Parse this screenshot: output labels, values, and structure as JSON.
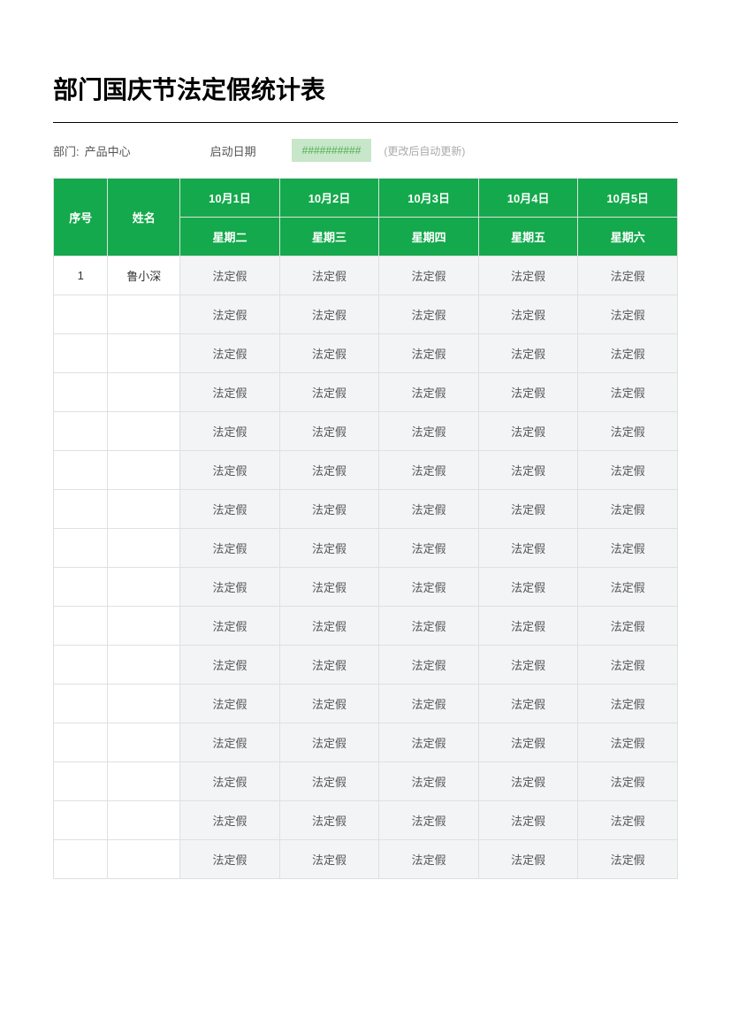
{
  "title": "部门国庆节法定假统计表",
  "info": {
    "dept_label": "部门:",
    "dept_value": "产品中心",
    "start_date_label": "启动日期",
    "start_date_value": "##########",
    "note": "(更改后自动更新)"
  },
  "table": {
    "headers": {
      "seq": "序号",
      "name": "姓名",
      "dates": [
        "10月1日",
        "10月2日",
        "10月3日",
        "10月4日",
        "10月5日"
      ],
      "weekdays": [
        "星期二",
        "星期三",
        "星期四",
        "星期五",
        "星期六"
      ]
    },
    "rows": [
      {
        "seq": "1",
        "name": "鲁小深",
        "cells": [
          "法定假",
          "法定假",
          "法定假",
          "法定假",
          "法定假"
        ]
      },
      {
        "seq": "",
        "name": "",
        "cells": [
          "法定假",
          "法定假",
          "法定假",
          "法定假",
          "法定假"
        ]
      },
      {
        "seq": "",
        "name": "",
        "cells": [
          "法定假",
          "法定假",
          "法定假",
          "法定假",
          "法定假"
        ]
      },
      {
        "seq": "",
        "name": "",
        "cells": [
          "法定假",
          "法定假",
          "法定假",
          "法定假",
          "法定假"
        ]
      },
      {
        "seq": "",
        "name": "",
        "cells": [
          "法定假",
          "法定假",
          "法定假",
          "法定假",
          "法定假"
        ]
      },
      {
        "seq": "",
        "name": "",
        "cells": [
          "法定假",
          "法定假",
          "法定假",
          "法定假",
          "法定假"
        ]
      },
      {
        "seq": "",
        "name": "",
        "cells": [
          "法定假",
          "法定假",
          "法定假",
          "法定假",
          "法定假"
        ]
      },
      {
        "seq": "",
        "name": "",
        "cells": [
          "法定假",
          "法定假",
          "法定假",
          "法定假",
          "法定假"
        ]
      },
      {
        "seq": "",
        "name": "",
        "cells": [
          "法定假",
          "法定假",
          "法定假",
          "法定假",
          "法定假"
        ]
      },
      {
        "seq": "",
        "name": "",
        "cells": [
          "法定假",
          "法定假",
          "法定假",
          "法定假",
          "法定假"
        ]
      },
      {
        "seq": "",
        "name": "",
        "cells": [
          "法定假",
          "法定假",
          "法定假",
          "法定假",
          "法定假"
        ]
      },
      {
        "seq": "",
        "name": "",
        "cells": [
          "法定假",
          "法定假",
          "法定假",
          "法定假",
          "法定假"
        ]
      },
      {
        "seq": "",
        "name": "",
        "cells": [
          "法定假",
          "法定假",
          "法定假",
          "法定假",
          "法定假"
        ]
      },
      {
        "seq": "",
        "name": "",
        "cells": [
          "法定假",
          "法定假",
          "法定假",
          "法定假",
          "法定假"
        ]
      },
      {
        "seq": "",
        "name": "",
        "cells": [
          "法定假",
          "法定假",
          "法定假",
          "法定假",
          "法定假"
        ]
      },
      {
        "seq": "",
        "name": "",
        "cells": [
          "法定假",
          "法定假",
          "法定假",
          "法定假",
          "法定假"
        ]
      }
    ]
  },
  "colors": {
    "header_bg": "#14a94c",
    "header_text": "#ffffff",
    "body_bg": "#f3f4f6",
    "border": "#e0e0e0",
    "date_cell_bg": "#c8e6c9"
  }
}
